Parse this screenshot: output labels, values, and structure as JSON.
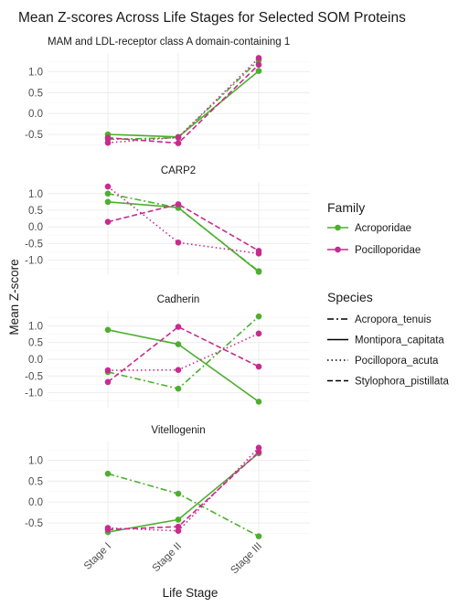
{
  "chart_data": {
    "type": "line",
    "title": "Mean Z-scores Across Life Stages for Selected SOM Proteins",
    "xlabel": "Life Stage",
    "ylabel": "Mean Z-score",
    "categories": [
      "Stage I",
      "Stage II",
      "Stage III"
    ],
    "legend": {
      "family_title": "Family",
      "families": [
        {
          "name": "Acroporidae",
          "color": "#4daf2f"
        },
        {
          "name": "Pocilloporidae",
          "color": "#c92a8f"
        }
      ],
      "species_title": "Species",
      "species": [
        {
          "name": "Acropora_tenuis",
          "dash": "longdash-dot"
        },
        {
          "name": "Montipora_capitata",
          "dash": "solid"
        },
        {
          "name": "Pocillopora_acuta",
          "dash": "dotted"
        },
        {
          "name": "Stylophora_pistillata",
          "dash": "dashed"
        }
      ],
      "placement": "right"
    },
    "grid": true,
    "panels": [
      {
        "strip": "MAM and LDL-receptor class A domain-containing 1",
        "yticks": [
          -0.5,
          0.0,
          0.5,
          1.0
        ],
        "ylim": [
          -0.85,
          1.45
        ],
        "series": [
          {
            "family": "Acroporidae",
            "species": "Acropora_tenuis",
            "values": [
              -0.62,
              -0.58,
              1.28
            ]
          },
          {
            "family": "Acroporidae",
            "species": "Montipora_capitata",
            "values": [
              -0.5,
              -0.56,
              1.02
            ]
          },
          {
            "family": "Pocilloporidae",
            "species": "Pocillopora_acuta",
            "values": [
              -0.7,
              -0.57,
              1.33
            ]
          },
          {
            "family": "Pocilloporidae",
            "species": "Stylophora_pistillata",
            "values": [
              -0.58,
              -0.71,
              1.17
            ]
          }
        ]
      },
      {
        "strip": "CARP2",
        "yticks": [
          -1.0,
          -0.5,
          0.0,
          0.5,
          1.0
        ],
        "ylim": [
          -1.45,
          1.35
        ],
        "series": [
          {
            "family": "Acroporidae",
            "species": "Acropora_tenuis",
            "values": [
              1.0,
              0.57,
              -1.33
            ]
          },
          {
            "family": "Acroporidae",
            "species": "Montipora_capitata",
            "values": [
              0.75,
              0.58,
              -1.35
            ]
          },
          {
            "family": "Pocilloporidae",
            "species": "Pocillopora_acuta",
            "values": [
              1.21,
              -0.47,
              -0.8
            ]
          },
          {
            "family": "Pocilloporidae",
            "species": "Stylophora_pistillata",
            "values": [
              0.15,
              0.68,
              -0.72
            ]
          }
        ]
      },
      {
        "strip": "Cadherin",
        "yticks": [
          -1.0,
          -0.5,
          0.0,
          0.5,
          1.0
        ],
        "ylim": [
          -1.45,
          1.45
        ],
        "series": [
          {
            "family": "Acroporidae",
            "species": "Acropora_tenuis",
            "values": [
              -0.38,
              -0.88,
              1.28
            ]
          },
          {
            "family": "Acroporidae",
            "species": "Montipora_capitata",
            "values": [
              0.88,
              0.45,
              -1.27
            ]
          },
          {
            "family": "Pocilloporidae",
            "species": "Pocillopora_acuta",
            "values": [
              -0.33,
              -0.32,
              0.77
            ]
          },
          {
            "family": "Pocilloporidae",
            "species": "Stylophora_pistillata",
            "values": [
              -0.68,
              0.97,
              -0.22
            ]
          }
        ]
      },
      {
        "strip": "Vitellogenin",
        "yticks": [
          -0.5,
          0.0,
          0.5,
          1.0
        ],
        "ylim": [
          -0.85,
          1.45
        ],
        "series": [
          {
            "family": "Acroporidae",
            "species": "Acropora_tenuis",
            "values": [
              0.68,
              0.2,
              -0.82
            ]
          },
          {
            "family": "Acroporidae",
            "species": "Montipora_capitata",
            "values": [
              -0.72,
              -0.42,
              1.17
            ]
          },
          {
            "family": "Pocilloporidae",
            "species": "Pocillopora_acuta",
            "values": [
              -0.62,
              -0.69,
              1.3
            ]
          },
          {
            "family": "Pocilloporidae",
            "species": "Stylophora_pistillata",
            "values": [
              -0.66,
              -0.59,
              1.2
            ]
          }
        ]
      }
    ]
  }
}
